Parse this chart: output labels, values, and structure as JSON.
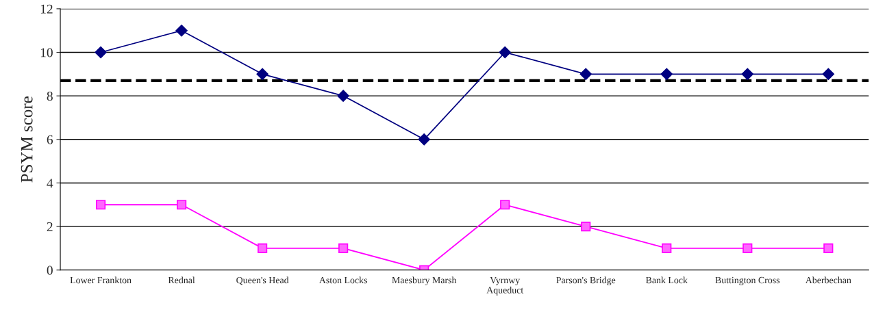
{
  "chart_data": {
    "type": "line",
    "ylabel": "PSYM score",
    "categories": [
      "Lower Frankton",
      "Rednal",
      "Queen's Head",
      "Aston Locks",
      "Maesbury Marsh",
      "Vyrnwy\nAqueduct",
      "Parson's Bridge",
      "Bank Lock",
      "Buttington Cross",
      "Aberbechan"
    ],
    "series": [
      {
        "color": "#000080",
        "marker": "diamond",
        "values": [
          10,
          11,
          9,
          8,
          6,
          10,
          9,
          9,
          9,
          9
        ]
      },
      {
        "color": "#ff00ff",
        "marker": "square",
        "values": [
          3,
          3,
          1,
          1,
          0,
          3,
          2,
          1,
          1,
          1
        ]
      }
    ],
    "ylim": [
      0,
      12
    ],
    "yticks": [
      0,
      2,
      4,
      6,
      8,
      10,
      12
    ],
    "grid": "y",
    "legend": false,
    "ref_lines": [
      {
        "axis": "y",
        "value": 8.7,
        "color": "#000000",
        "line_style": "dashed"
      }
    ]
  }
}
